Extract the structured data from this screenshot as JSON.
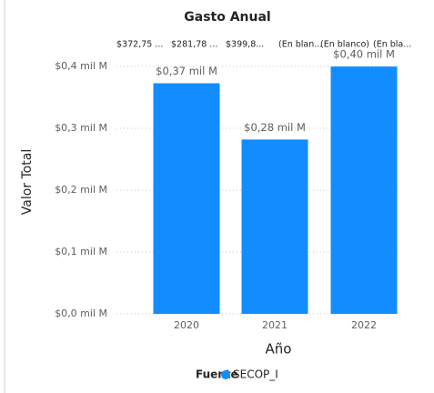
{
  "chart_data": {
    "type": "bar",
    "title": "Gasto Anual",
    "top_labels": [
      "$372,75 ...",
      "$281,78 ...",
      "$399,8...",
      "(En blan...",
      "(En blanco)",
      "(En bla..."
    ],
    "categories": [
      "2020",
      "2021",
      "2022"
    ],
    "series": [
      {
        "name": "SECOP_I",
        "color": "#118dff",
        "values": [
          0.3728,
          0.2818,
          0.3998
        ],
        "value_labels": [
          "$0,37 mil M",
          "$0,28 mil M",
          "$0,40 mil M"
        ]
      }
    ],
    "ylim": [
      0,
      0.4
    ],
    "yticks": [
      {
        "value": 0,
        "label": "$0,0 mil M"
      },
      {
        "value": 0.1,
        "label": "$0,1 mil M"
      },
      {
        "value": 0.2,
        "label": "$0,2 mil M"
      },
      {
        "value": 0.3,
        "label": "$0,3 mil M"
      },
      {
        "value": 0.4,
        "label": "$0,4 mil M"
      }
    ],
    "xlabel": "Año",
    "ylabel": "Valor Total",
    "legend_title": "Fuente",
    "grid": true
  }
}
